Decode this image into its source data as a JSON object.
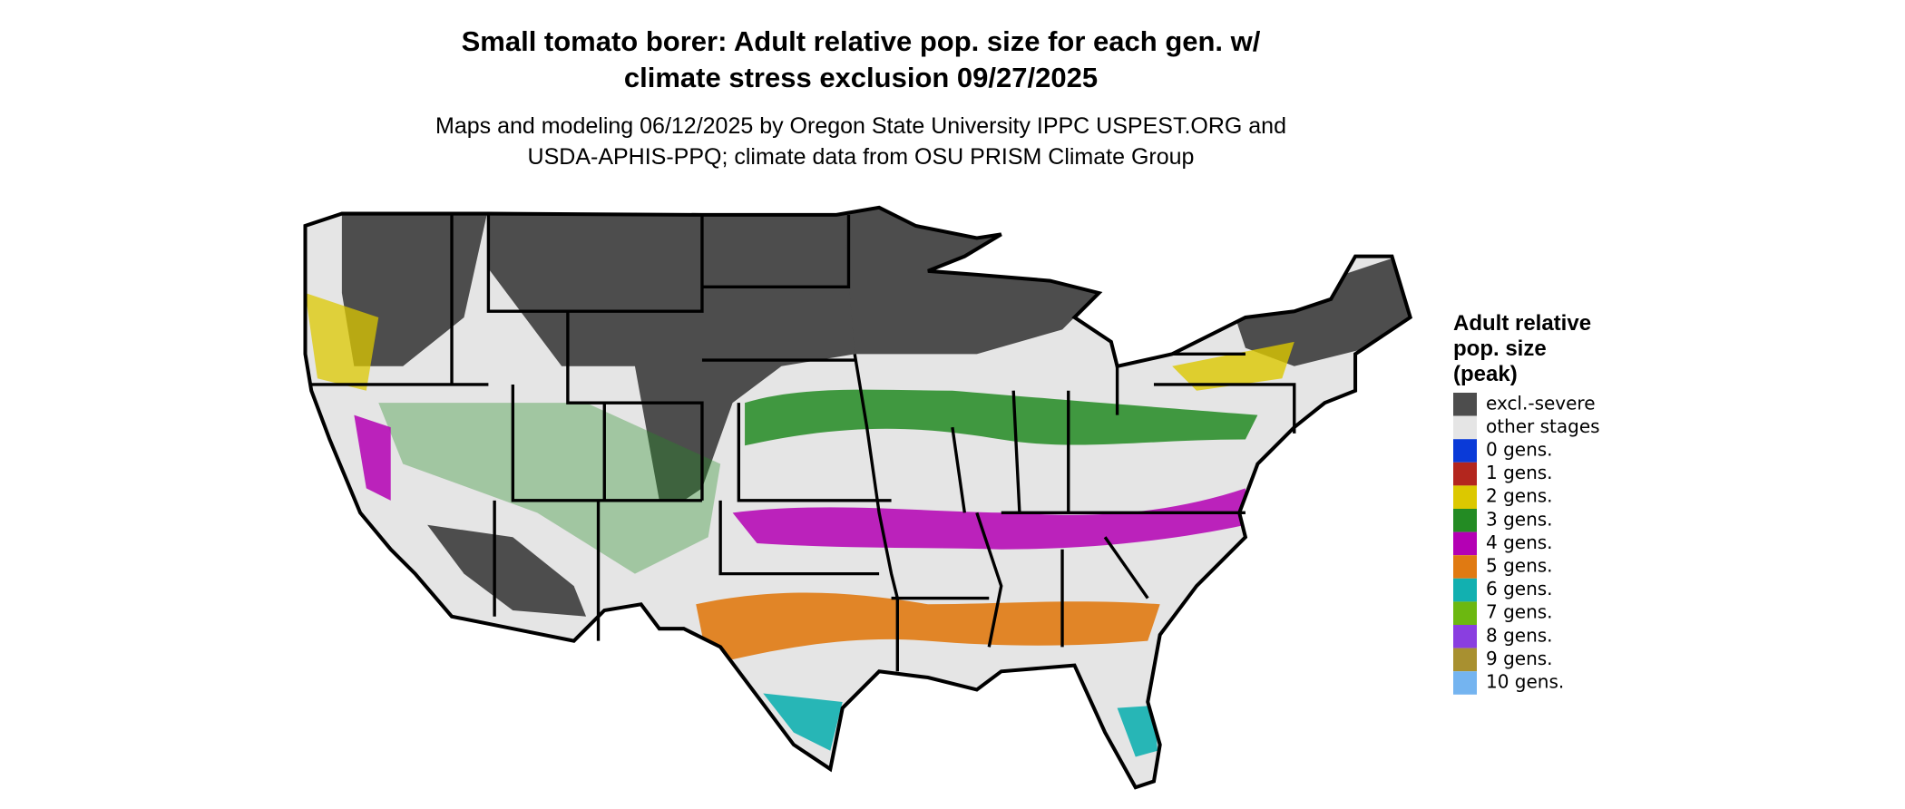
{
  "title": [
    "Small tomato borer: Adult relative pop. size for each gen. w/",
    "climate stress exclusion 09/27/2025"
  ],
  "subtitle": [
    "Maps and modeling 06/12/2025 by Oregon State University IPPC USPEST.ORG and",
    "USDA-APHIS-PPQ; climate data from OSU PRISM Climate Group"
  ],
  "legend": {
    "title": [
      "Adult relative",
      "pop. size",
      "(peak)"
    ],
    "items": [
      {
        "label": "excl.-severe",
        "color": "#4d4d4d"
      },
      {
        "label": "other stages",
        "color": "#e5e5e5"
      },
      {
        "label": "0 gens.",
        "color": "#0a3ad8"
      },
      {
        "label": "1 gens.",
        "color": "#b3261e"
      },
      {
        "label": "2 gens.",
        "color": "#dcc800"
      },
      {
        "label": "3 gens.",
        "color": "#238b23"
      },
      {
        "label": "4 gens.",
        "color": "#b400b4"
      },
      {
        "label": "5 gens.",
        "color": "#e07a12"
      },
      {
        "label": "6 gens.",
        "color": "#12b0b0"
      },
      {
        "label": "7 gens.",
        "color": "#6cb810"
      },
      {
        "label": "8 gens.",
        "color": "#8a3ee0"
      },
      {
        "label": "9 gens.",
        "color": "#a89030"
      },
      {
        "label": "10 gens.",
        "color": "#74b4f0"
      }
    ]
  }
}
